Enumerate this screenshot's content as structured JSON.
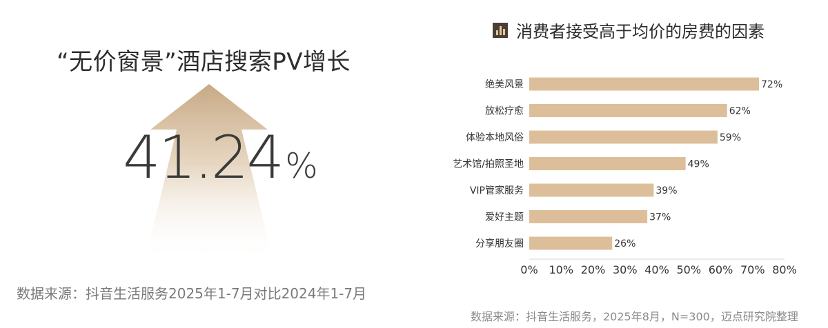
{
  "left": {
    "title": "“无价窗景”酒店搜索PV增长",
    "big_value": "41.24",
    "big_unit": "%",
    "source": "数据来源：抖音生活服务2025年1-7月对比2024年1-7月"
  },
  "colors": {
    "bar": "#dcbf9a",
    "arrow_top": "#c8a985",
    "arrow_bottom": "#ffffff",
    "axis_line": "#d6d6d6",
    "icon_bg": "#4a3f36",
    "icon_fg": "#e6c79c"
  },
  "chart_data": {
    "type": "bar",
    "orientation": "horizontal",
    "title": "消费者接受高于均价的房费的因素",
    "categories": [
      "绝美风景",
      "放松疗愈",
      "体验本地风俗",
      "艺术馆/拍照圣地",
      "VIP管家服务",
      "爱好主题",
      "分享朋友圈"
    ],
    "values": [
      72,
      62,
      59,
      49,
      39,
      37,
      26
    ],
    "value_labels": [
      "72%",
      "62%",
      "59%",
      "49%",
      "39%",
      "37%",
      "26%"
    ],
    "xlim": [
      0,
      80
    ],
    "xticks": [
      0,
      10,
      20,
      30,
      40,
      50,
      60,
      70,
      80
    ],
    "xtick_labels": [
      "0%",
      "10%",
      "20%",
      "30%",
      "40%",
      "50%",
      "60%",
      "70%",
      "80%"
    ],
    "source": "数据来源：抖音生活服务，2025年8月，N=300，迈点研究院整理"
  }
}
